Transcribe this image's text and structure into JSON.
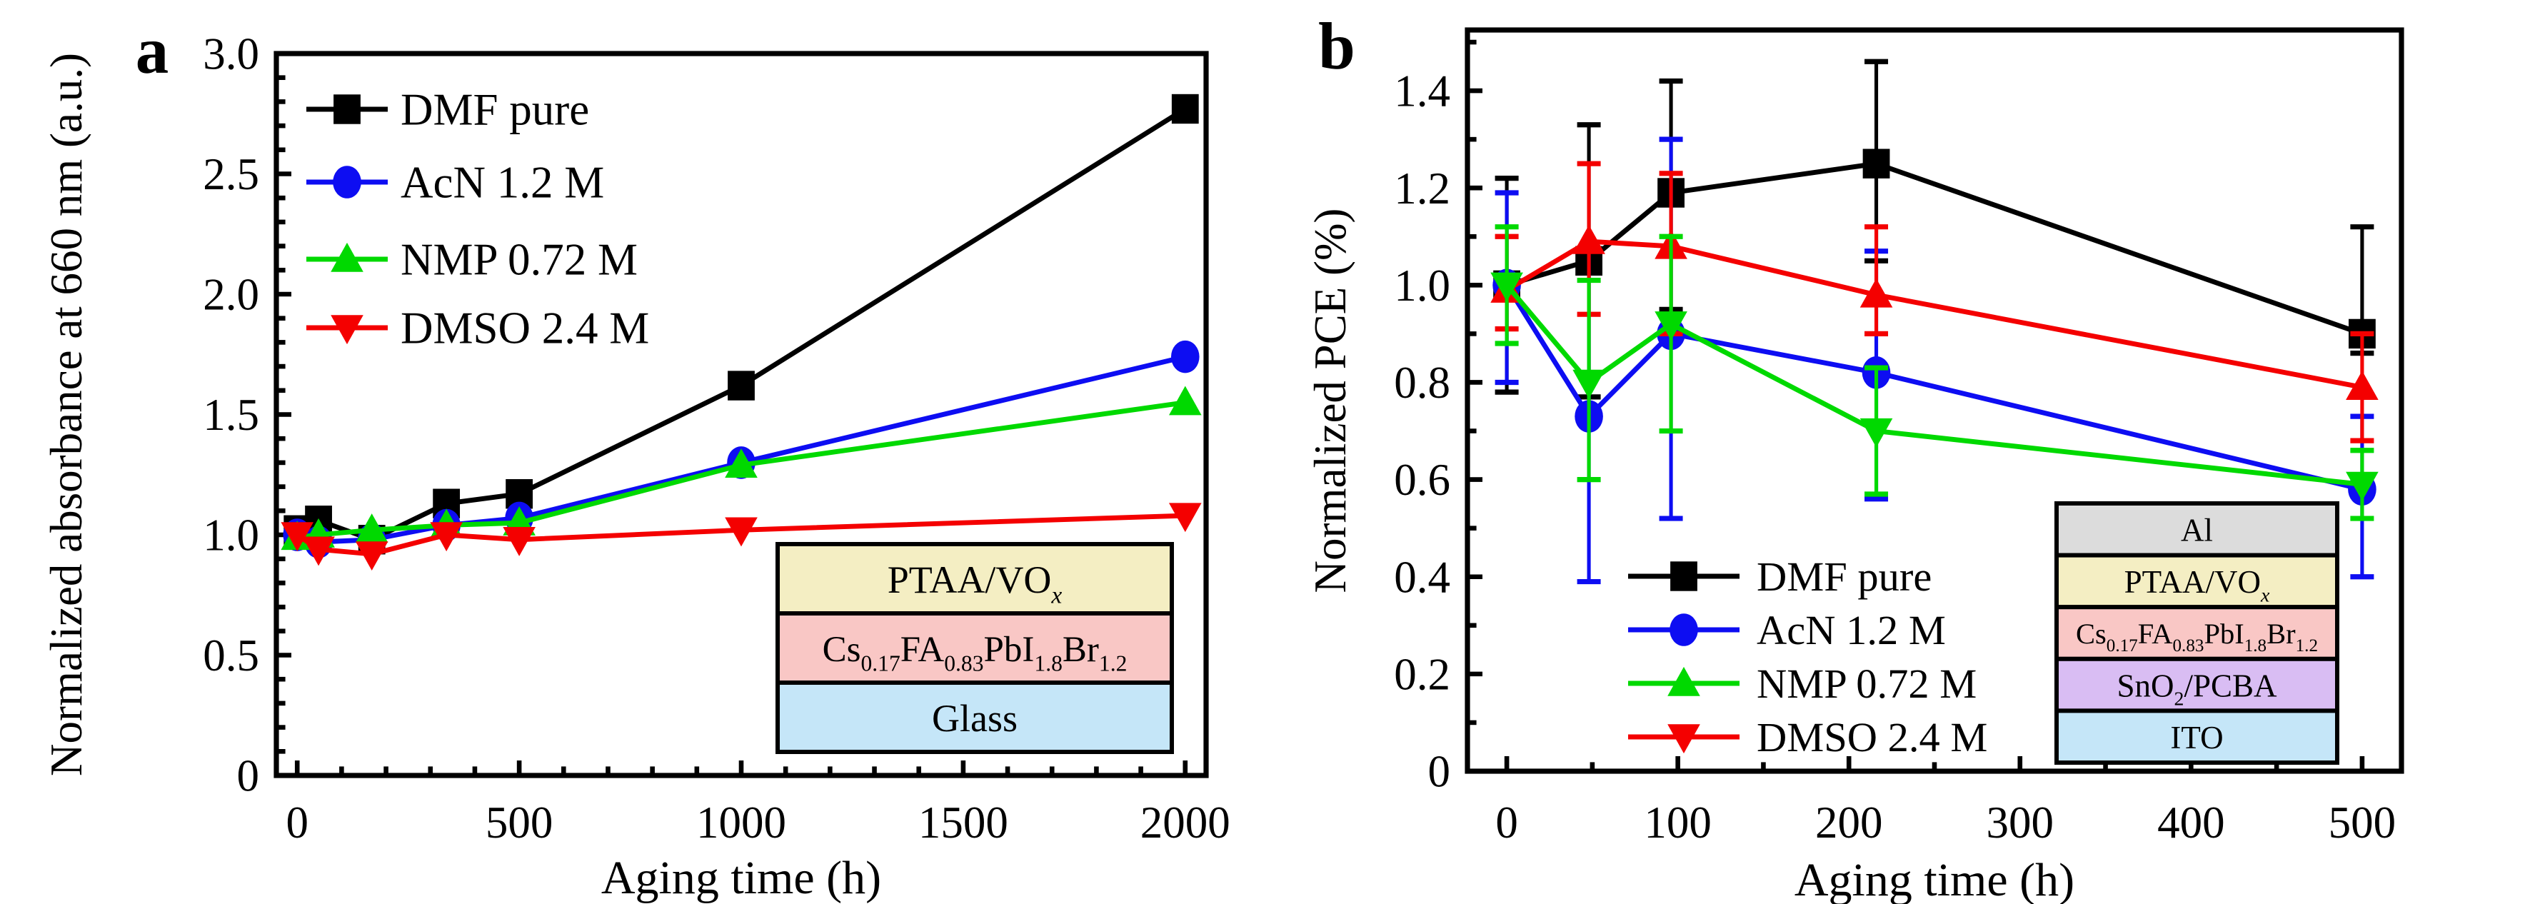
{
  "figure": {
    "background": "#ffffff",
    "frame_color": "#000000"
  },
  "chart_data": [
    {
      "type": "line",
      "panel_label": "a",
      "xlabel": "Aging time (h)",
      "ylabel": "Normalized absorbance at 660 nm (a.u.)",
      "xlim": [
        -47,
        2047
      ],
      "ylim": [
        0,
        3.0
      ],
      "x_major_ticks": [
        0,
        500,
        1000,
        1500,
        2000
      ],
      "x_tick_labels": [
        "0",
        "500",
        "1000",
        "1500",
        "2000"
      ],
      "x_minor_step": 100,
      "y_major_ticks": [
        0,
        0.5,
        1.0,
        1.5,
        2.0,
        2.5,
        3.0
      ],
      "y_tick_labels": [
        "0",
        "0.5",
        "1.0",
        "1.5",
        "2.0",
        "2.5",
        "3.0"
      ],
      "y_minor_step": 0.1,
      "grid": false,
      "legend_position": "top-left",
      "x": [
        0,
        48,
        168,
        336,
        500,
        1000,
        2000
      ],
      "draw_order": [
        0,
        1,
        2,
        3
      ],
      "series": [
        {
          "name": "DMF pure",
          "color": "#000000",
          "marker": "square",
          "legend_marker": "square",
          "values": [
            1.02,
            1.06,
            0.98,
            1.13,
            1.17,
            1.62,
            2.77
          ]
        },
        {
          "name": "AcN 1.2 M",
          "color": "#0d0df2",
          "marker": "circle",
          "legend_marker": "circle",
          "values": [
            1.0,
            0.97,
            0.98,
            1.04,
            1.07,
            1.3,
            1.74
          ]
        },
        {
          "name": "NMP 0.72 M",
          "color": "#00d900",
          "marker": "triangle-up",
          "legend_marker": "triangle-up",
          "values": [
            0.99,
            1.0,
            1.02,
            1.04,
            1.05,
            1.29,
            1.55
          ]
        },
        {
          "name": "DMSO 2.4 M",
          "color": "#f40000",
          "marker": "triangle-down",
          "legend_marker": "triangle-down",
          "values": [
            1.0,
            0.94,
            0.92,
            1.0,
            0.98,
            1.02,
            1.08
          ]
        }
      ],
      "inset_layers": [
        {
          "fill": "#f4eec3",
          "segments": [
            {
              "t": "PTAA/VO"
            },
            {
              "t": "x",
              "sub": true,
              "italic": true
            }
          ]
        },
        {
          "fill": "#f9c7c5",
          "segments": [
            {
              "t": "Cs"
            },
            {
              "t": "0.17",
              "sub": true
            },
            {
              "t": "FA"
            },
            {
              "t": "0.83",
              "sub": true
            },
            {
              "t": "PbI"
            },
            {
              "t": "1.8",
              "sub": true
            },
            {
              "t": "Br"
            },
            {
              "t": "1.2",
              "sub": true
            }
          ]
        },
        {
          "fill": "#c5e6f8",
          "segments": [
            {
              "t": "Glass"
            }
          ]
        }
      ]
    },
    {
      "type": "line",
      "panel_label": "b",
      "xlabel": "Aging time (h)",
      "ylabel": "Normalized PCE (%)",
      "xlim": [
        -23,
        523
      ],
      "ylim": [
        0,
        1.525
      ],
      "x_major_ticks": [
        0,
        100,
        200,
        300,
        400,
        500
      ],
      "x_tick_labels": [
        "0",
        "100",
        "200",
        "300",
        "400",
        "500"
      ],
      "x_minor_step": 50,
      "y_major_ticks": [
        0,
        0.2,
        0.4,
        0.6,
        0.8,
        1.0,
        1.2,
        1.4
      ],
      "y_tick_labels": [
        "0",
        "0.2",
        "0.4",
        "0.6",
        "0.8",
        "1.0",
        "1.2",
        "1.4"
      ],
      "y_minor_step": 0.1,
      "grid": false,
      "legend_position": "bottom-center-left",
      "x": [
        0,
        48,
        96,
        216,
        500
      ],
      "draw_order": [
        0,
        1,
        3,
        2
      ],
      "series": [
        {
          "name": "DMF pure",
          "color": "#000000",
          "marker": "square",
          "legend_marker": "square",
          "values": [
            1.0,
            1.05,
            1.19,
            1.25,
            0.9
          ],
          "err_lo": [
            0.78,
            0.77,
            0.95,
            1.05,
            0.86
          ],
          "err_hi": [
            1.22,
            1.33,
            1.42,
            1.46,
            1.12
          ]
        },
        {
          "name": "AcN 1.2 M",
          "color": "#0d0df2",
          "marker": "circle",
          "legend_marker": "circle",
          "values": [
            1.0,
            0.73,
            0.9,
            0.82,
            0.58
          ],
          "err_lo": [
            0.8,
            0.39,
            0.52,
            0.56,
            0.4
          ],
          "err_hi": [
            1.19,
            1.07,
            1.3,
            1.07,
            0.73
          ]
        },
        {
          "name": "NMP 0.72 M",
          "color": "#00d900",
          "marker": "triangle-down",
          "legend_marker": "triangle-up",
          "values": [
            1.0,
            0.8,
            0.92,
            0.7,
            0.59
          ],
          "err_lo": [
            0.88,
            0.6,
            0.7,
            0.57,
            0.52
          ],
          "err_hi": [
            1.12,
            1.01,
            1.1,
            0.83,
            0.66
          ]
        },
        {
          "name": "DMSO 2.4 M",
          "color": "#f40000",
          "marker": "triangle-up",
          "legend_marker": "triangle-down",
          "values": [
            0.99,
            1.09,
            1.08,
            0.98,
            0.79
          ],
          "err_lo": [
            0.91,
            0.94,
            0.9,
            0.9,
            0.68
          ],
          "err_hi": [
            1.1,
            1.25,
            1.23,
            1.12,
            0.9
          ]
        }
      ],
      "inset_layers": [
        {
          "fill": "#dcdcdc",
          "segments": [
            {
              "t": "Al"
            }
          ]
        },
        {
          "fill": "#f4eec3",
          "segments": [
            {
              "t": "PTAA/VO"
            },
            {
              "t": "x",
              "sub": true,
              "italic": true
            }
          ]
        },
        {
          "fill": "#f9c7c5",
          "segments": [
            {
              "t": "Cs"
            },
            {
              "t": "0.17",
              "sub": true
            },
            {
              "t": "FA"
            },
            {
              "t": "0.83",
              "sub": true
            },
            {
              "t": "PbI"
            },
            {
              "t": "1.8",
              "sub": true
            },
            {
              "t": "Br"
            },
            {
              "t": "1.2",
              "sub": true
            }
          ]
        },
        {
          "fill": "#d9bdf3",
          "segments": [
            {
              "t": "SnO"
            },
            {
              "t": "2",
              "sub": true
            },
            {
              "t": "/PCBA"
            }
          ]
        },
        {
          "fill": "#c5e6f8",
          "segments": [
            {
              "t": "ITO"
            }
          ]
        }
      ]
    }
  ]
}
